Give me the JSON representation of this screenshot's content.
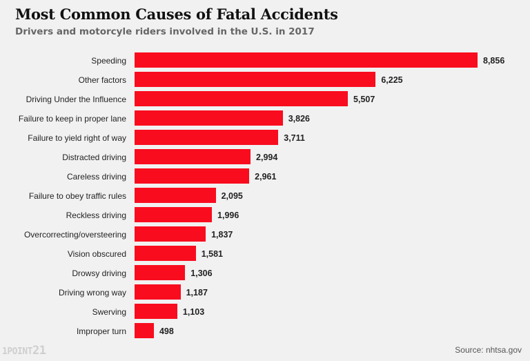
{
  "header": {
    "title": "Most Common Causes of Fatal Accidents",
    "subtitle": "Drivers and motorcyle riders involved in the U.S. in 2017"
  },
  "footer": {
    "logo_text": "1POINT",
    "logo_number": "21",
    "source": "Source: nhtsa.gov"
  },
  "colors": {
    "bar": "#f90c1e",
    "background": "#f1f1f1"
  },
  "chart_data": {
    "type": "bar",
    "orientation": "horizontal",
    "title": "Most Common Causes of Fatal Accidents",
    "subtitle": "Drivers and motorcyle riders involved in the U.S. in 2017",
    "xlabel": "",
    "ylabel": "",
    "grid": false,
    "legend": null,
    "categories": [
      "Speeding",
      "Other factors",
      "Driving Under the Influence",
      "Failure to keep in proper lane",
      "Failure to yield right of way",
      "Distracted driving",
      "Careless driving",
      "Failure to obey traffic rules",
      "Reckless driving",
      "Overcorrecting/oversteering",
      "Vision obscured",
      "Drowsy driving",
      "Driving wrong way",
      "Swerving",
      "Improper turn"
    ],
    "values": [
      8856,
      6225,
      5507,
      3826,
      3711,
      2994,
      2961,
      2095,
      1996,
      1837,
      1581,
      1306,
      1187,
      1103,
      498
    ],
    "labels": [
      "8,856",
      "6,225",
      "5,507",
      "3,826",
      "3,711",
      "2,994",
      "2,961",
      "2,095",
      "1,996",
      "1,837",
      "1,581",
      "1,306",
      "1,187",
      "1,103",
      "498"
    ],
    "source": "Source: nhtsa.gov"
  }
}
